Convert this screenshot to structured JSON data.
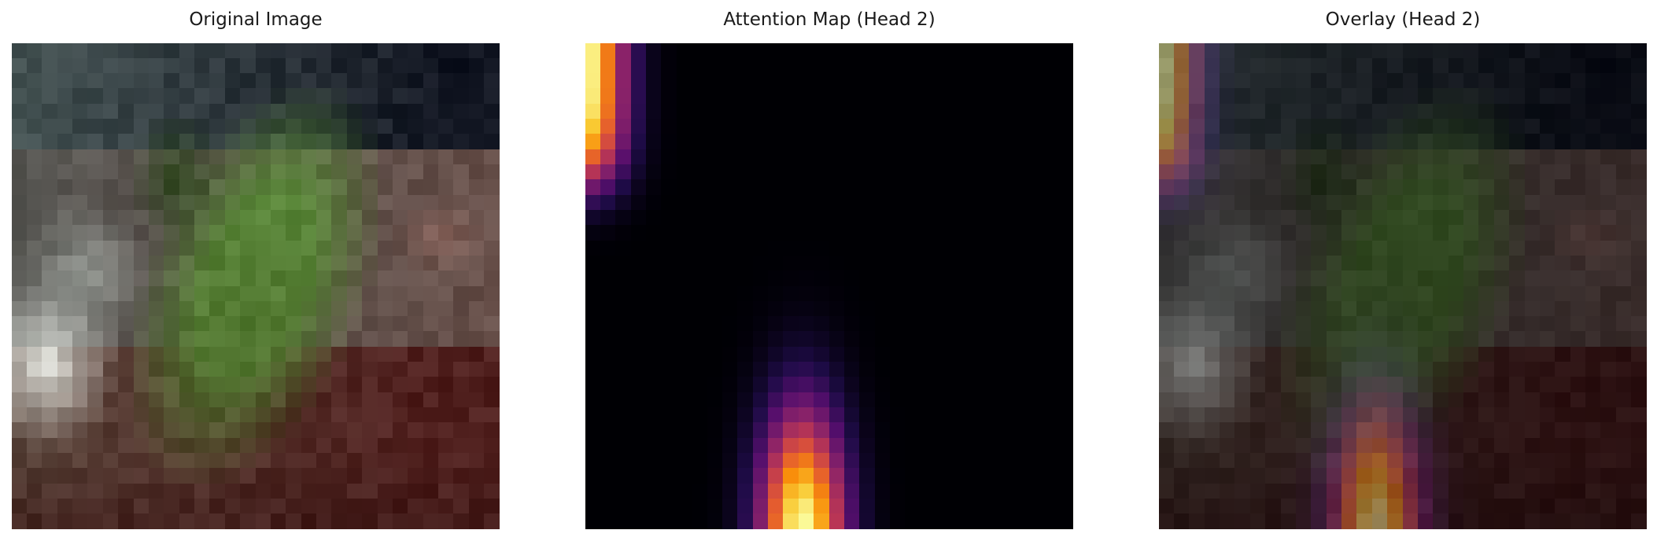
{
  "figure": {
    "panels": [
      {
        "title": "Original Image"
      },
      {
        "title": "Attention Map (Head 2)"
      },
      {
        "title": "Overlay (Head 2)"
      }
    ]
  }
}
